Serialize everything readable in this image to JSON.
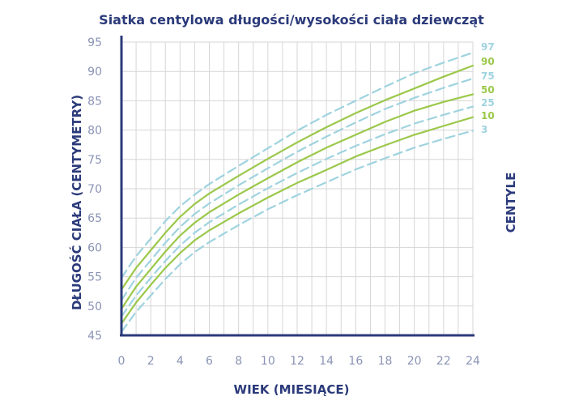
{
  "chart_data": {
    "type": "line",
    "title": "Siatka centylowa długości/wysokości ciała dziewcząt",
    "xlabel": "WIEK (MIESIĄCE)",
    "ylabel": "DŁUGOŚĆ CIAŁA (CENTYMETRY)",
    "right_label": "CENTYLE",
    "xlim": [
      0,
      24
    ],
    "ylim": [
      45,
      95
    ],
    "x_ticks": [
      "0",
      "2",
      "4",
      "6",
      "8",
      "10",
      "12",
      "14",
      "16",
      "18",
      "20",
      "22",
      "24"
    ],
    "y_ticks": [
      "45",
      "50",
      "55",
      "60",
      "65",
      "70",
      "75",
      "80",
      "85",
      "90",
      "95"
    ],
    "grid": true,
    "x": [
      0,
      1,
      2,
      3,
      4,
      5,
      6,
      8,
      10,
      12,
      14,
      16,
      18,
      20,
      22,
      24
    ],
    "series": [
      {
        "name": "97",
        "style": "dashed",
        "color": "#9fd3df",
        "values": [
          54.8,
          58.5,
          61.5,
          64.5,
          67.0,
          69.0,
          70.8,
          73.9,
          76.9,
          79.9,
          82.6,
          85.0,
          87.4,
          89.7,
          91.5,
          93.2
        ]
      },
      {
        "name": "90",
        "style": "solid",
        "color": "#9bc84a",
        "values": [
          52.8,
          56.5,
          59.5,
          62.5,
          65.2,
          67.4,
          69.2,
          72.2,
          75.1,
          77.9,
          80.5,
          82.9,
          85.1,
          87.1,
          89.1,
          91.0
        ]
      },
      {
        "name": "75",
        "style": "dashed",
        "color": "#9fd3df",
        "values": [
          51.0,
          54.8,
          57.8,
          60.8,
          63.5,
          65.7,
          67.5,
          70.6,
          73.5,
          76.3,
          78.9,
          81.3,
          83.6,
          85.5,
          87.2,
          88.8
        ]
      },
      {
        "name": "50",
        "style": "solid",
        "color": "#9bc84a",
        "values": [
          49.5,
          53.3,
          56.3,
          59.3,
          62.0,
          64.2,
          66.0,
          69.0,
          71.8,
          74.5,
          77.0,
          79.2,
          81.4,
          83.3,
          84.8,
          86.1
        ]
      },
      {
        "name": "25",
        "style": "dashed",
        "color": "#9fd3df",
        "values": [
          48.2,
          51.8,
          54.8,
          57.7,
          60.3,
          62.5,
          64.3,
          67.3,
          70.1,
          72.7,
          75.1,
          77.3,
          79.3,
          81.1,
          82.6,
          84.0
        ]
      },
      {
        "name": "10",
        "style": "solid",
        "color": "#9bc84a",
        "values": [
          47.0,
          50.6,
          53.6,
          56.5,
          59.0,
          61.2,
          62.9,
          65.8,
          68.5,
          71.0,
          73.2,
          75.5,
          77.4,
          79.2,
          80.7,
          82.2
        ]
      },
      {
        "name": "3",
        "style": "dashed",
        "color": "#9fd3df",
        "values": [
          45.6,
          49.0,
          51.8,
          54.6,
          57.1,
          59.2,
          60.9,
          63.8,
          66.5,
          68.9,
          71.1,
          73.3,
          75.2,
          77.0,
          78.5,
          79.9
        ]
      }
    ]
  },
  "colors": {
    "axis": "#2b3a7a",
    "grid": "#d6d6d6",
    "green": "#9bc84a",
    "blue": "#9fd3df"
  }
}
